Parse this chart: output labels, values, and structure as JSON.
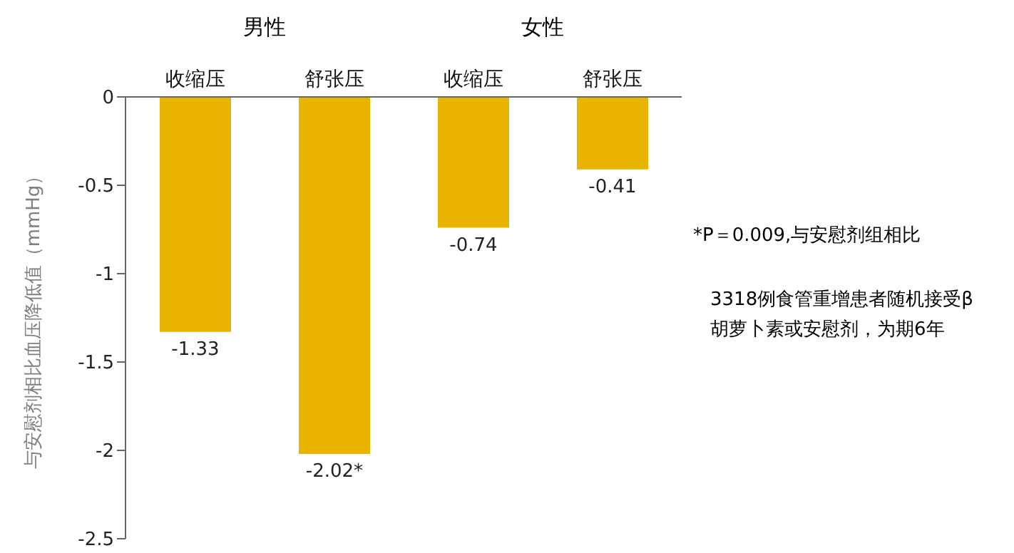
{
  "chart_data": {
    "type": "bar",
    "ylabel": "与安慰剂相比血压降低值（mmHg）",
    "categories": [
      "收缩压",
      "舒张压",
      "收缩压",
      "舒张压"
    ],
    "values": [
      -1.33,
      -2.02,
      -0.74,
      -0.41
    ],
    "value_labels": [
      "-1.33",
      "-2.02*",
      "-0.74",
      "-0.41"
    ],
    "color": "#e8b400",
    "ylim": [
      -2.5,
      0
    ],
    "yticks": [
      0,
      -0.5,
      -1,
      -1.5,
      -2,
      -2.5
    ],
    "grid": false,
    "annotations": [
      "男性",
      "女性",
      "*P＝0.009,与安慰剂组相比",
      "3318例食管重增患者随机接受β胡萝卜素或安慰剂，为期6年"
    ]
  }
}
